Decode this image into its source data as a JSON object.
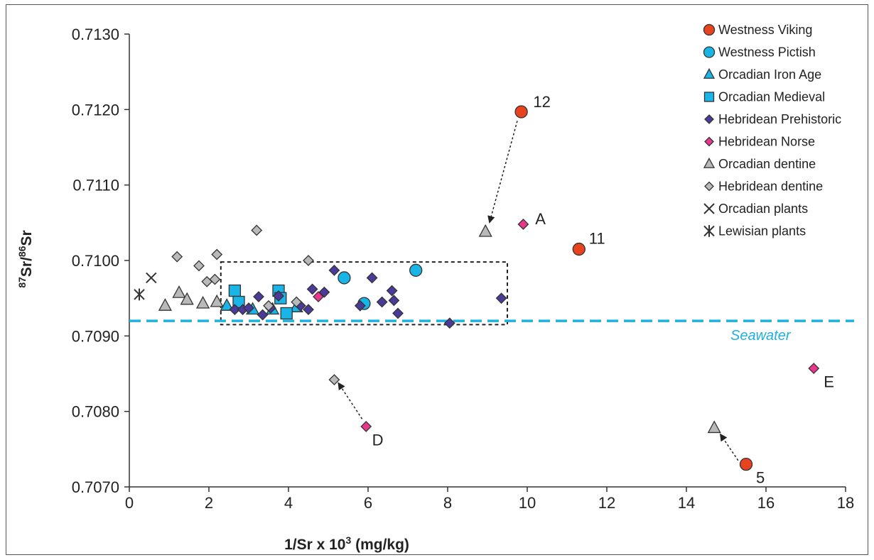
{
  "chart_data": {
    "type": "scatter",
    "title": "",
    "xlabel": "1/Sr x 10",
    "xlabel_sup": "3",
    "xlabel_suffix": " (mg/kg)",
    "ylabel_parts": [
      "87",
      "Sr/",
      "86",
      "Sr"
    ],
    "xlim": [
      0,
      18
    ],
    "ylim": [
      0.707,
      0.713
    ],
    "x_ticks": [
      "0",
      "2",
      "4",
      "6",
      "8",
      "10",
      "12",
      "14",
      "16",
      "18"
    ],
    "y_ticks": [
      "0.7070",
      "0.7080",
      "0.7090",
      "0.7100",
      "0.7110",
      "0.7120",
      "0.7130"
    ],
    "grid": false,
    "legend_position": "right",
    "seawater": {
      "label": "Seawater",
      "y": 0.7092,
      "color": "#1fb0e0"
    },
    "box": {
      "x0": 2.3,
      "x1": 9.5,
      "y0": 0.70915,
      "y1": 0.70998
    },
    "series": [
      {
        "name": "Westness Viking",
        "marker": "circle",
        "color": "#e8431f",
        "x": [
          9.85,
          11.3,
          15.5
        ],
        "y": [
          0.71197,
          0.71015,
          0.7073
        ]
      },
      {
        "name": "Westness Pictish",
        "marker": "circle",
        "color": "#19b5e6",
        "x": [
          5.4,
          5.9,
          7.2
        ],
        "y": [
          0.70977,
          0.70943,
          0.70987
        ]
      },
      {
        "name": "Orcadian Iron Age",
        "marker": "triangle",
        "color": "#19b5e6",
        "x": [
          2.45,
          3.1,
          3.6,
          4.2
        ],
        "y": [
          0.7094,
          0.70935,
          0.70935,
          0.70938
        ]
      },
      {
        "name": "Orcadian Medieval",
        "marker": "square",
        "color": "#19b5e6",
        "x": [
          2.65,
          2.75,
          3.75,
          3.8,
          3.95
        ],
        "y": [
          0.7096,
          0.70945,
          0.7096,
          0.7095,
          0.7093
        ]
      },
      {
        "name": "Hebridean Prehistoric",
        "marker": "diamond",
        "color": "#4b3a9a",
        "x": [
          2.65,
          2.85,
          3.0,
          3.25,
          3.35,
          3.55,
          3.75,
          4.3,
          4.5,
          4.6,
          4.9,
          5.15,
          5.8,
          6.1,
          6.35,
          6.6,
          6.65,
          6.75,
          8.05,
          9.35
        ],
        "y": [
          0.70935,
          0.70935,
          0.70937,
          0.70952,
          0.70928,
          0.70937,
          0.70953,
          0.7094,
          0.70935,
          0.70962,
          0.70958,
          0.70987,
          0.7094,
          0.70977,
          0.70945,
          0.7096,
          0.70947,
          0.7093,
          0.70917,
          0.7095
        ]
      },
      {
        "name": "Hebridean Norse",
        "marker": "diamond",
        "color": "#e8388d",
        "x": [
          9.9,
          4.75,
          5.95,
          17.2
        ],
        "y": [
          0.71048,
          0.70952,
          0.7078,
          0.70857
        ]
      },
      {
        "name": "Orcadian dentine",
        "marker": "triangle",
        "color": "#b9b9b9",
        "x": [
          0.9,
          1.25,
          1.45,
          1.85,
          2.2,
          8.95,
          14.7
        ],
        "y": [
          0.7094,
          0.70957,
          0.70948,
          0.70943,
          0.70945,
          0.71038,
          0.70778
        ]
      },
      {
        "name": "Hebridean dentine",
        "marker": "diamond",
        "color": "#b9b9b9",
        "x": [
          1.2,
          1.75,
          1.95,
          2.15,
          2.2,
          3.2,
          4.5,
          5.15,
          4.2,
          3.5
        ],
        "y": [
          0.71005,
          0.70993,
          0.70972,
          0.70975,
          0.71008,
          0.7104,
          0.71,
          0.70842,
          0.70945,
          0.7094
        ]
      },
      {
        "name": "Orcadian plants",
        "marker": "x",
        "color": "#333333",
        "x": [
          0.55
        ],
        "y": [
          0.70977
        ]
      },
      {
        "name": "Lewisian plants",
        "marker": "asterisk",
        "color": "#333333",
        "x": [
          0.25
        ],
        "y": [
          0.70955
        ]
      }
    ],
    "annotations": [
      {
        "text": "12",
        "x": 10.15,
        "y": 0.71203
      },
      {
        "text": "A",
        "x": 10.2,
        "y": 0.71048
      },
      {
        "text": "11",
        "x": 11.55,
        "y": 0.71022
      },
      {
        "text": "E",
        "x": 17.45,
        "y": 0.70832
      },
      {
        "text": "D",
        "x": 6.1,
        "y": 0.70755
      },
      {
        "text": "5",
        "x": 15.75,
        "y": 0.70705
      }
    ],
    "arrows": [
      {
        "from": [
          9.75,
          0.71185
        ],
        "to": [
          9.05,
          0.7105
        ]
      },
      {
        "from": [
          5.85,
          0.7079
        ],
        "to": [
          5.25,
          0.70838
        ]
      },
      {
        "from": [
          15.3,
          0.70735
        ],
        "to": [
          14.85,
          0.7077
        ]
      }
    ]
  }
}
